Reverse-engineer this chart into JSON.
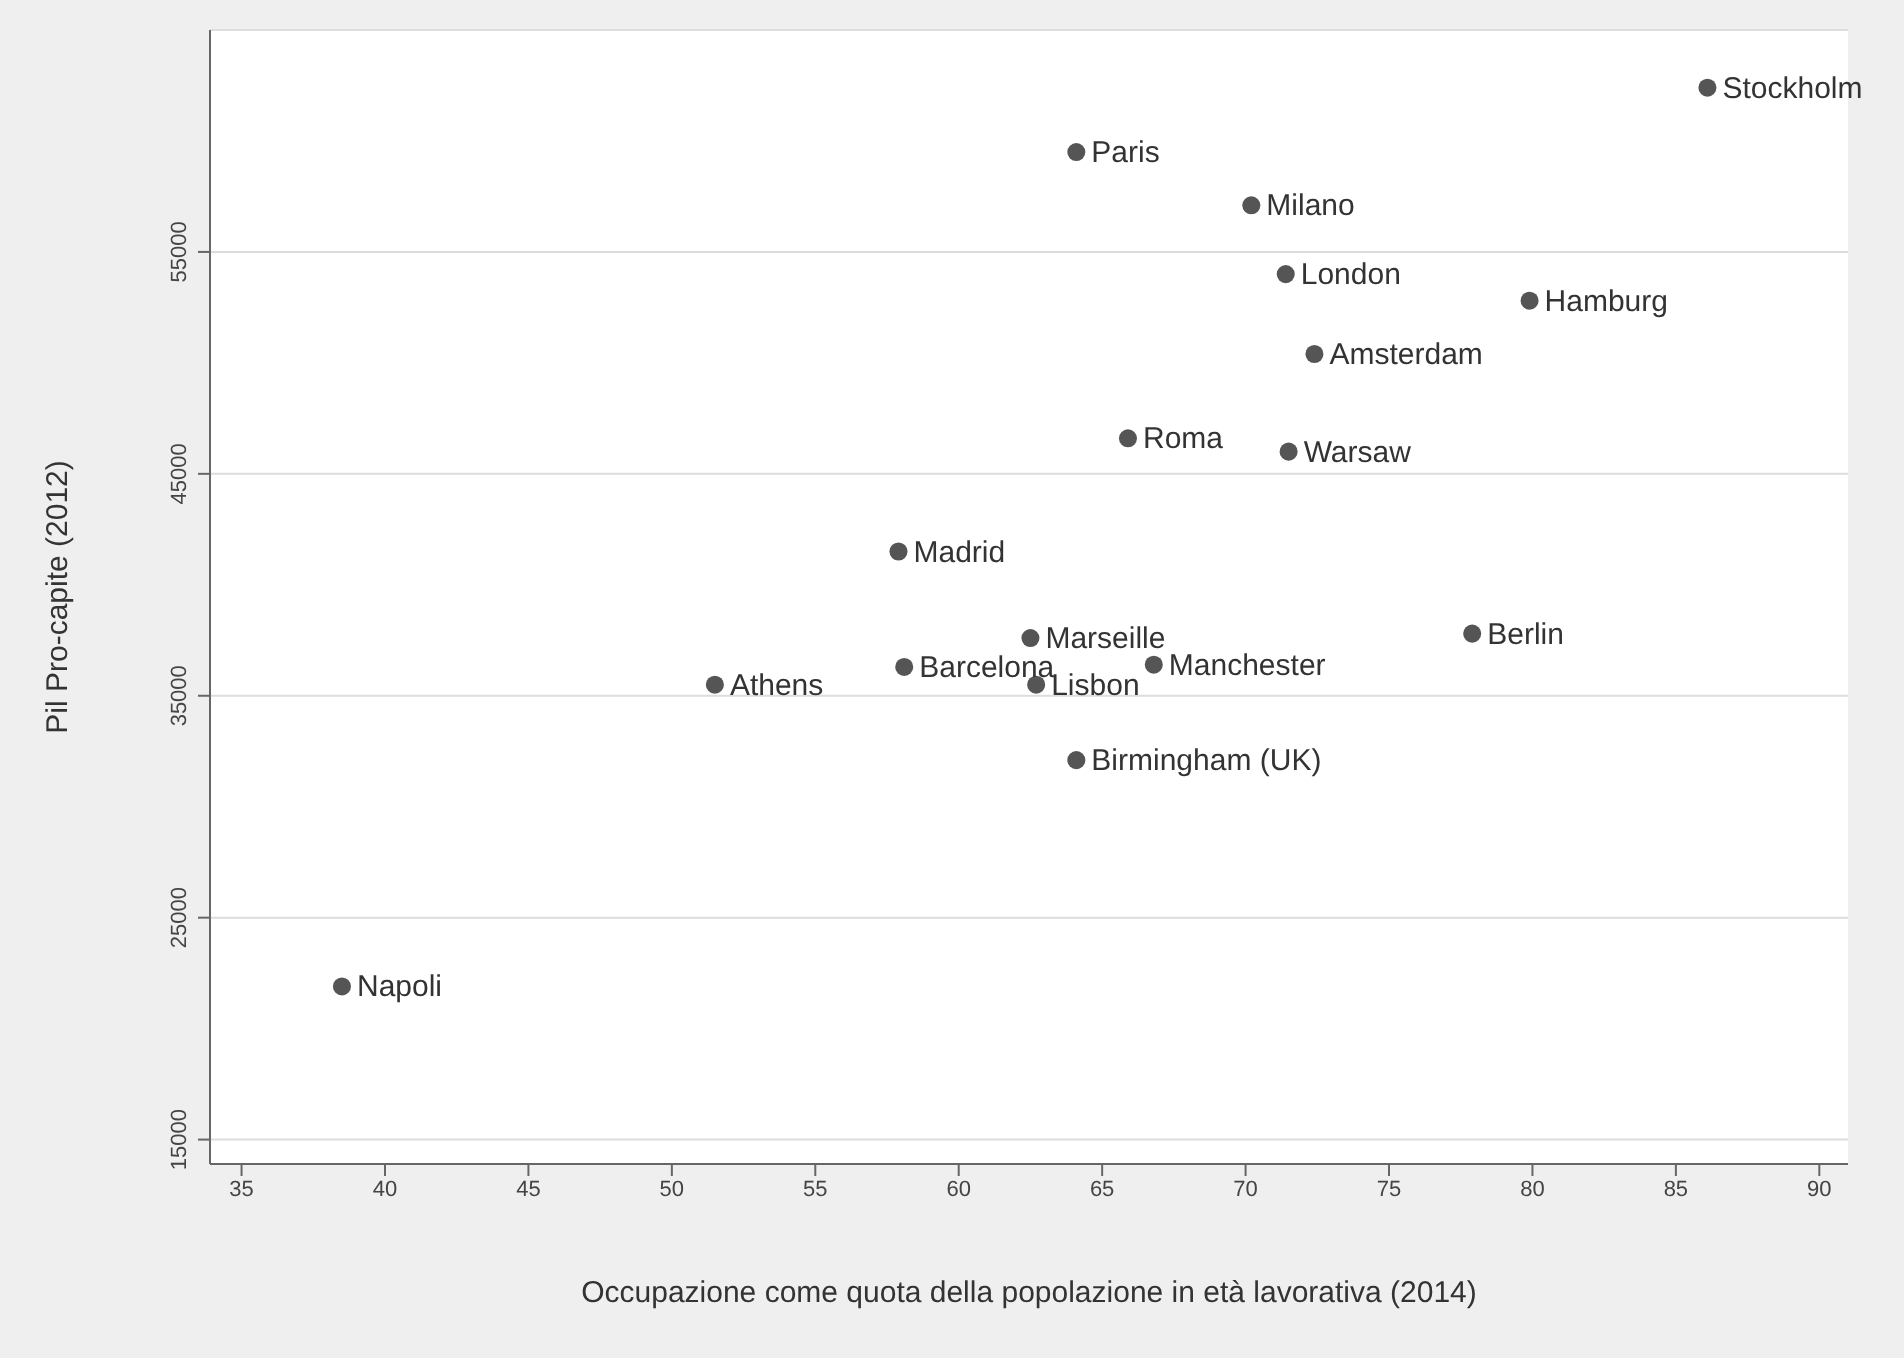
{
  "chart_data": {
    "type": "scatter",
    "xlabel": "Occupazione come quota della popolazione in età lavorativa (2014)",
    "ylabel": "Pil Pro-capite (2012)",
    "xlim": [
      33.9,
      91
    ],
    "xticks": [
      35,
      40,
      45,
      50,
      55,
      60,
      65,
      70,
      75,
      80,
      85,
      90
    ],
    "ylim": [
      13900,
      65000
    ],
    "yticks": [
      15000,
      25000,
      35000,
      45000,
      55000
    ],
    "grid": "y",
    "legend": false,
    "marker": "circle",
    "series": [
      {
        "name": "Stockholm",
        "color": "#555555",
        "x": [
          86.1
        ],
        "values": [
          62400
        ]
      },
      {
        "name": "Paris",
        "color": "#555555",
        "x": [
          64.1
        ],
        "values": [
          59500
        ]
      },
      {
        "name": "Milano",
        "color": "#555555",
        "x": [
          70.2
        ],
        "values": [
          57100
        ]
      },
      {
        "name": "London",
        "color": "#555555",
        "x": [
          71.4
        ],
        "values": [
          54000
        ]
      },
      {
        "name": "Hamburg",
        "color": "#555555",
        "x": [
          79.9
        ],
        "values": [
          52800
        ]
      },
      {
        "name": "Amsterdam",
        "color": "#555555",
        "x": [
          72.4
        ],
        "values": [
          50400
        ]
      },
      {
        "name": "Roma",
        "color": "#555555",
        "x": [
          65.9
        ],
        "values": [
          46600
        ]
      },
      {
        "name": "Warsaw",
        "color": "#555555",
        "x": [
          71.5
        ],
        "values": [
          46000
        ]
      },
      {
        "name": "Madrid",
        "color": "#555555",
        "x": [
          57.9
        ],
        "values": [
          41500
        ]
      },
      {
        "name": "Marseille",
        "color": "#555555",
        "x": [
          62.5
        ],
        "values": [
          37600
        ]
      },
      {
        "name": "Berlin",
        "color": "#555555",
        "x": [
          77.9
        ],
        "values": [
          37800
        ]
      },
      {
        "name": "Manchester",
        "color": "#555555",
        "x": [
          66.8
        ],
        "values": [
          36400
        ]
      },
      {
        "name": "Barcelona",
        "color": "#555555",
        "x": [
          58.1
        ],
        "values": [
          36300
        ]
      },
      {
        "name": "Lisbon",
        "color": "#555555",
        "x": [
          62.7
        ],
        "values": [
          35500
        ]
      },
      {
        "name": "Athens",
        "color": "#555555",
        "x": [
          51.5
        ],
        "values": [
          35500
        ]
      },
      {
        "name": "Birmingham (UK)",
        "color": "#555555",
        "x": [
          64.1
        ],
        "values": [
          32100
        ]
      },
      {
        "name": "Napoli",
        "color": "#555555",
        "x": [
          38.5
        ],
        "values": [
          21900
        ]
      }
    ]
  }
}
